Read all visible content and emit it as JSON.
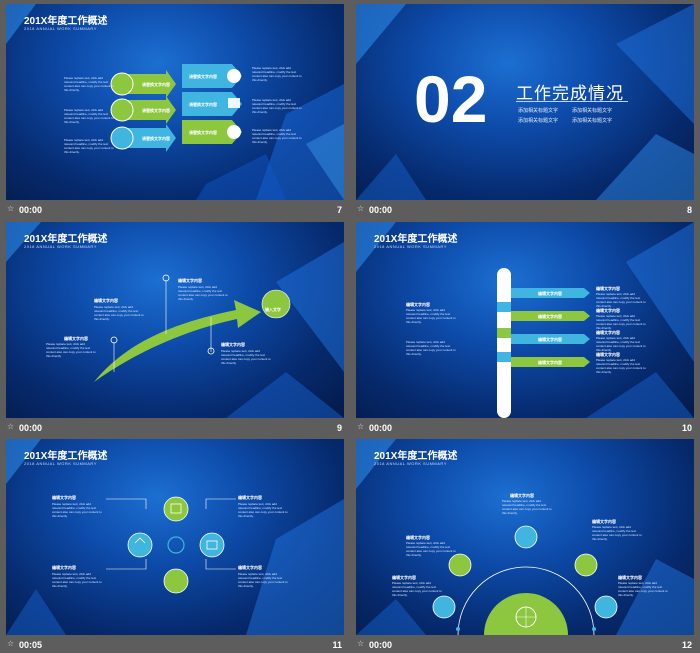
{
  "common": {
    "title": "201X年度工作概述",
    "subtitle": "2018 ANNUAL WORK SUMMARY",
    "heading": "编辑文字内容",
    "para": "Please replace text, click add relevant headline, modify the text content also can copy your content to this directly.",
    "arrow_text": "请替换文字内容",
    "transition_star": "☆"
  },
  "slides": [
    {
      "number": "7",
      "duration": "00:00"
    },
    {
      "number": "8",
      "duration": "00:00",
      "big_number": "02",
      "section_title": "工作完成情况",
      "items": [
        "添加相关标题文字",
        "添加相关标题文字",
        "添加相关标题文字",
        "添加相关标题文字"
      ]
    },
    {
      "number": "9",
      "duration": "00:00",
      "badge": "输入文字"
    },
    {
      "number": "10",
      "duration": "00:00"
    },
    {
      "number": "11",
      "duration": "00:05"
    },
    {
      "number": "12",
      "duration": "00:00"
    }
  ],
  "colors": {
    "green": "#8dc63f",
    "blue": "#3fb5e0",
    "bg": "#0d4aa8",
    "frame": "#5d5d5d"
  }
}
